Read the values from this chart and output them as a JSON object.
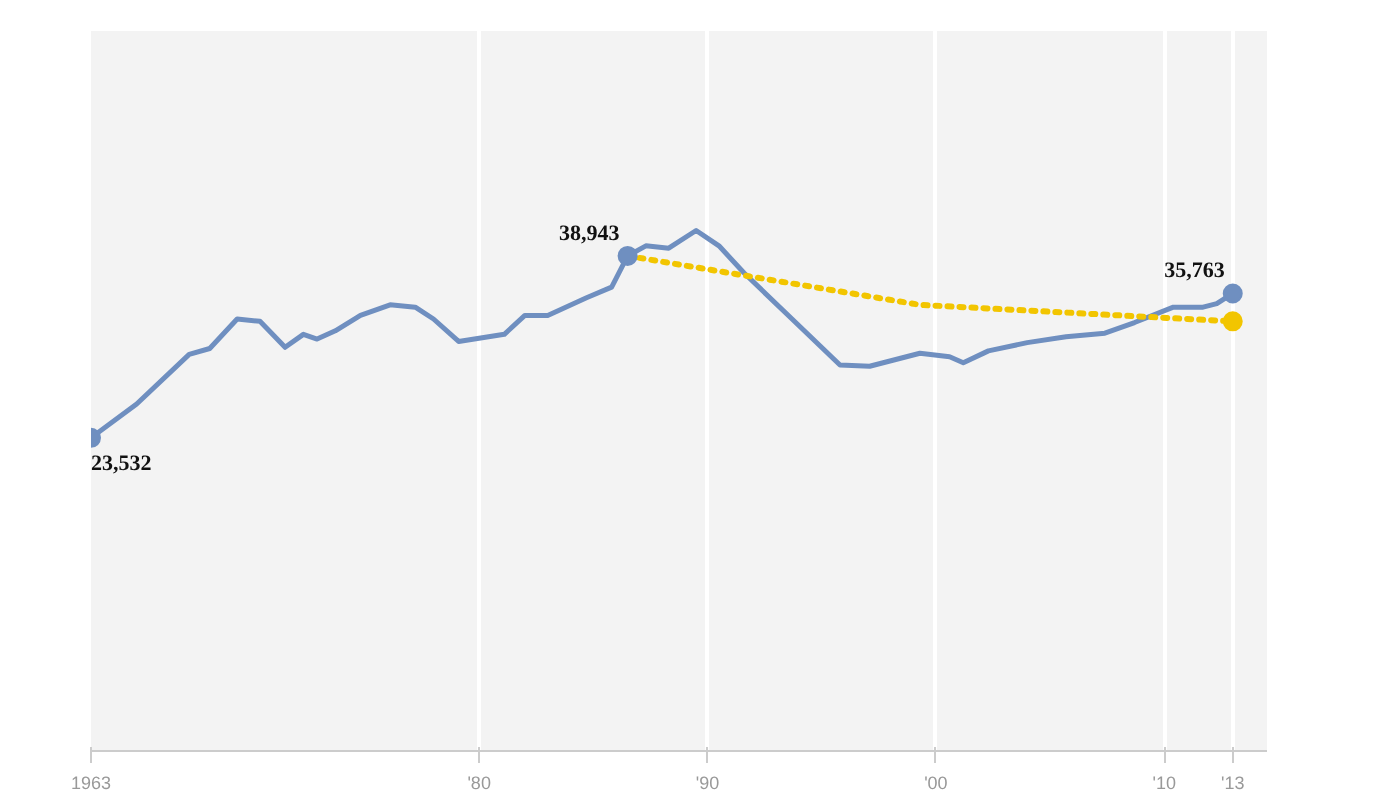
{
  "chart_data": {
    "type": "line",
    "xlim": [
      1963,
      2014.5
    ],
    "ylim": [
      -3000,
      58000
    ],
    "xticks": [
      {
        "value": 1963,
        "label": "1963"
      },
      {
        "value": 1980,
        "label": "'80"
      },
      {
        "value": 1990,
        "label": "'90"
      },
      {
        "value": 2000,
        "label": "'00"
      },
      {
        "value": 2010,
        "label": "'10"
      },
      {
        "value": 2013,
        "label": "'13"
      }
    ],
    "tick_labels": "x",
    "grid": "x",
    "line_style": "solid",
    "series": [
      {
        "color": "#6f8fc0",
        "x": [
          1963,
          1965.0,
          1967.3,
          1968.2,
          1969.4,
          1970.4,
          1971.5,
          1972.3,
          1972.9,
          1973.7,
          1974.8,
          1976.1,
          1977.2,
          1978.0,
          1979.1,
          1981.1,
          1982.0,
          1983.0,
          1984.7,
          1985.8,
          1986.5,
          1987.3,
          1988.3,
          1989.5,
          1990.5,
          1991.6,
          1993.7,
          1995.8,
          1997.1,
          1999.3,
          2000.6,
          2001.2,
          2002.3,
          2004.0,
          2005.7,
          2007.4,
          2008.7,
          2010.4,
          2011.7,
          2012.3,
          2013
        ],
        "values": [
          23532,
          26400,
          30600,
          31100,
          33600,
          33400,
          31200,
          32300,
          31900,
          32600,
          33900,
          34800,
          34600,
          33600,
          31700,
          32300,
          33900,
          33900,
          35400,
          36300,
          38943,
          39800,
          39600,
          41100,
          39800,
          37500,
          33600,
          29700,
          29600,
          30700,
          30400,
          29900,
          30900,
          31600,
          32100,
          32400,
          33300,
          34600,
          34600,
          34900,
          35763
        ]
      },
      {
        "color": "#f2c500",
        "line_style": "dotted",
        "x": [
          1986.5,
          1999.3,
          2013
        ],
        "values": [
          38943,
          34800,
          33400
        ]
      },
      {
        "type": "scatter",
        "marker": "circle",
        "color": "#f2c500",
        "x": [
          2013
        ],
        "values": [
          33400
        ]
      },
      {
        "type": "scatter",
        "marker": "circle",
        "color": "#6f8fc0",
        "x": [
          1963,
          1986.5,
          2013
        ],
        "values": [
          23532,
          38943,
          35763
        ],
        "value_labels": [
          "23,532",
          "38,943",
          "35,763"
        ]
      }
    ]
  }
}
